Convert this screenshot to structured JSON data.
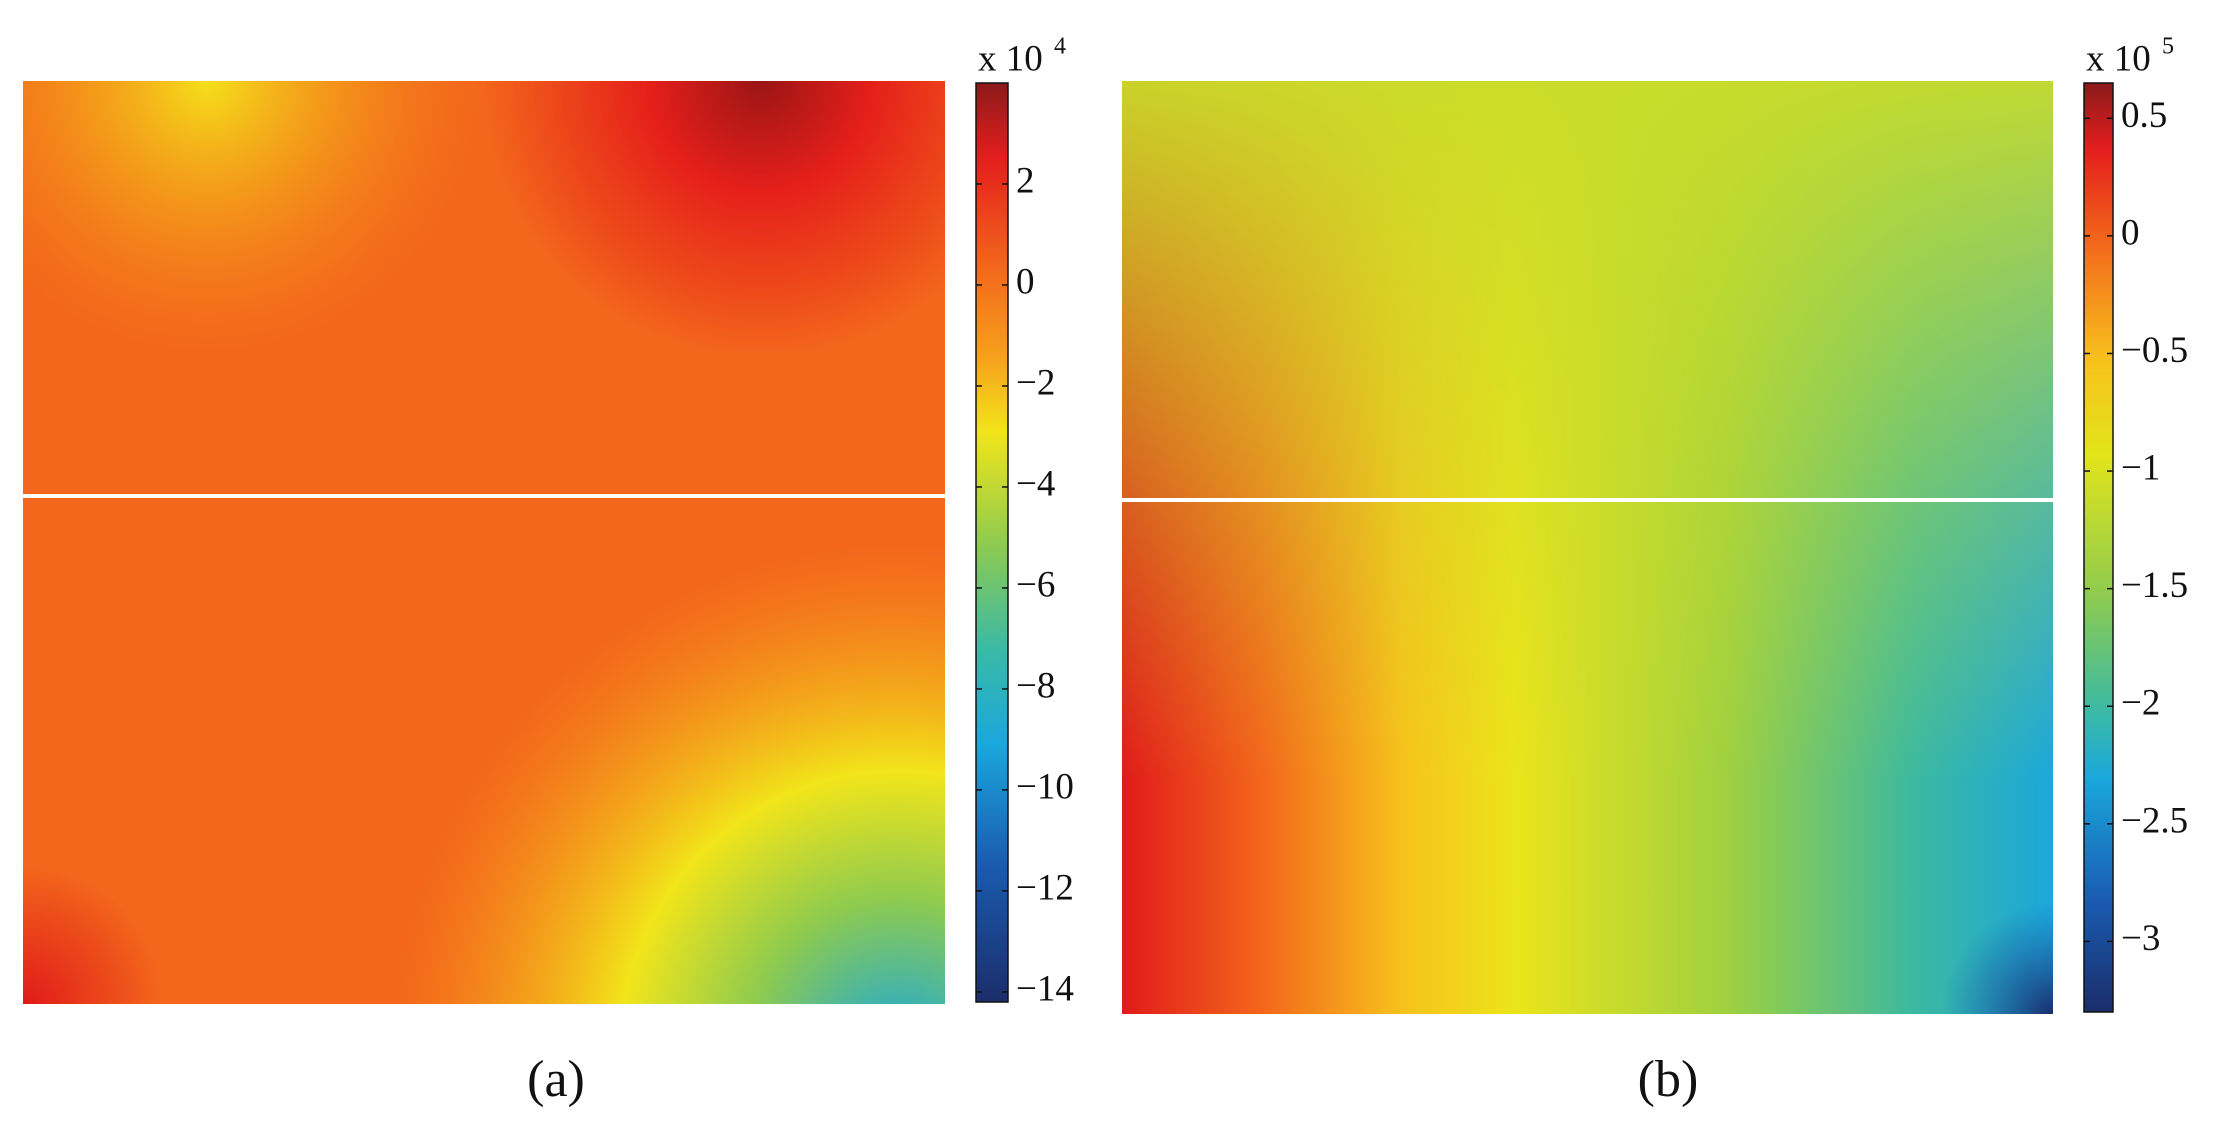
{
  "chart_data": [
    {
      "type": "contour",
      "panel_label": "(a)",
      "colorbar_label": "x 10",
      "colorbar_exponent": "4",
      "ylim": [
        -14.2,
        4
      ],
      "yticks": [
        2,
        0,
        {
          "value": -2,
          "label": "−2"
        },
        {
          "value": -4,
          "label": "−4"
        },
        {
          "value": -6,
          "label": "−6"
        },
        {
          "value": -8,
          "label": "−8"
        },
        {
          "value": -10,
          "label": "−10"
        },
        {
          "value": -12,
          "label": "−12"
        },
        {
          "value": -14,
          "label": "−14"
        }
      ]
    },
    {
      "type": "contour",
      "panel_label": "(b)",
      "colorbar_label": "x 10",
      "colorbar_exponent": "5",
      "ylim": [
        -3.3,
        0.65
      ],
      "yticks": [
        0.5,
        0,
        {
          "value": -0.5,
          "label": "−0.5"
        },
        {
          "value": -1,
          "label": "−1"
        },
        {
          "value": -1.5,
          "label": "−1.5"
        },
        {
          "value": -2,
          "label": "−2"
        },
        {
          "value": -2.5,
          "label": "−2.5"
        },
        {
          "value": -3,
          "label": "−3"
        }
      ]
    }
  ]
}
